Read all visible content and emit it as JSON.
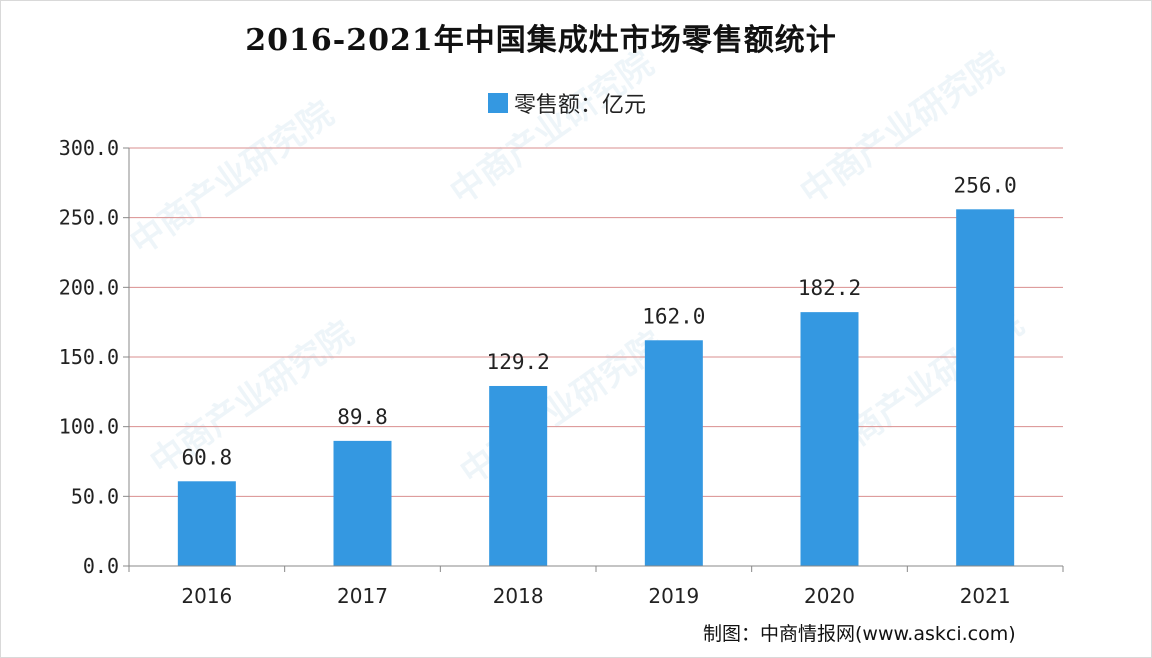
{
  "chart_data": {
    "type": "bar",
    "title": "2016-2021年中国集成灶市场零售额统计",
    "categories": [
      "2016",
      "2017",
      "2018",
      "2019",
      "2020",
      "2021"
    ],
    "series": [
      {
        "name": "零售额：亿元",
        "values": [
          60.8,
          89.8,
          129.2,
          162.0,
          182.2,
          256.0
        ],
        "color": "#3498e1"
      }
    ],
    "data_labels": [
      "60.8",
      "89.8",
      "129.2",
      "162.0",
      "182.2",
      "256.0"
    ],
    "yticks": [
      "0.0",
      "50.0",
      "100.0",
      "150.0",
      "200.0",
      "250.0",
      "300.0"
    ],
    "ylim": [
      0,
      300
    ],
    "grid": true,
    "legend_position": "top-center",
    "gridline_color": "#d98f8f",
    "axis_color": "#888888"
  },
  "credit": "制图：中商情报网(www.askci.com)",
  "watermark": "中商产业研究院"
}
